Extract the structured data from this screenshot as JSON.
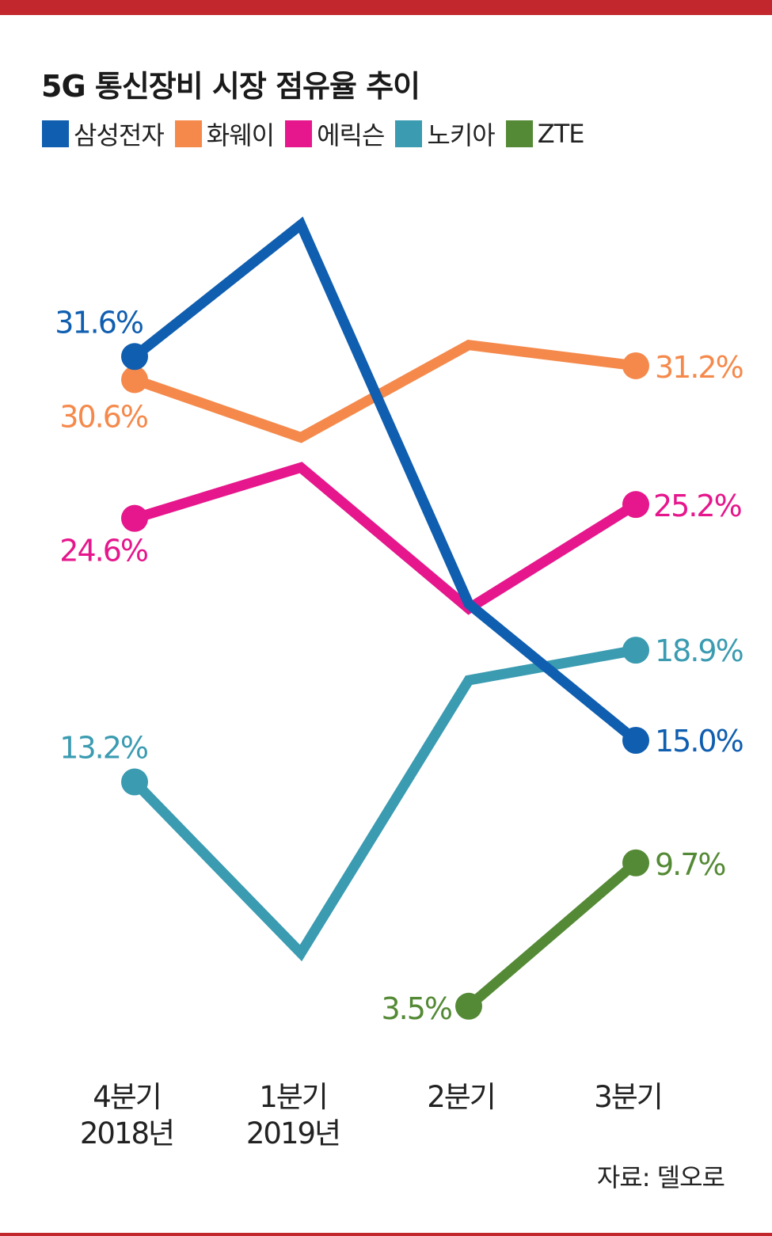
{
  "title": "5G 통신장비 시장 점유율 추이",
  "source": "자료: 델오로",
  "colors": {
    "frame": "#c1272d"
  },
  "chart_data": {
    "type": "line",
    "categories": [
      {
        "line1": "4분기",
        "line2": "2018년"
      },
      {
        "line1": "1분기",
        "line2": "2019년"
      },
      {
        "line1": "2분기",
        "line2": ""
      },
      {
        "line1": "3분기",
        "line2": ""
      }
    ],
    "legend_position": "top-left",
    "grid": false,
    "ylim": [
      0,
      45
    ],
    "series": [
      {
        "name": "삼성전자",
        "color": "#0f5eb0",
        "values": [
          31.6,
          37.3,
          20.9,
          15.0
        ],
        "labels": [
          "31.6%",
          null,
          null,
          "15.0%"
        ]
      },
      {
        "name": "화웨이",
        "color": "#f5894b",
        "values": [
          30.6,
          28.1,
          32.1,
          31.2
        ],
        "labels": [
          "30.6%",
          null,
          null,
          "31.2%"
        ]
      },
      {
        "name": "에릭슨",
        "color": "#e6168c",
        "values": [
          24.6,
          26.8,
          20.7,
          25.2
        ],
        "labels": [
          "24.6%",
          null,
          null,
          "25.2%"
        ]
      },
      {
        "name": "노키아",
        "color": "#3a9bb1",
        "values": [
          13.2,
          5.8,
          17.6,
          18.9
        ],
        "labels": [
          "13.2%",
          null,
          null,
          "18.9%"
        ]
      },
      {
        "name": "ZTE",
        "color": "#548a35",
        "values": [
          null,
          null,
          3.5,
          9.7
        ],
        "labels": [
          null,
          null,
          "3.5%",
          "9.7%"
        ]
      }
    ]
  }
}
